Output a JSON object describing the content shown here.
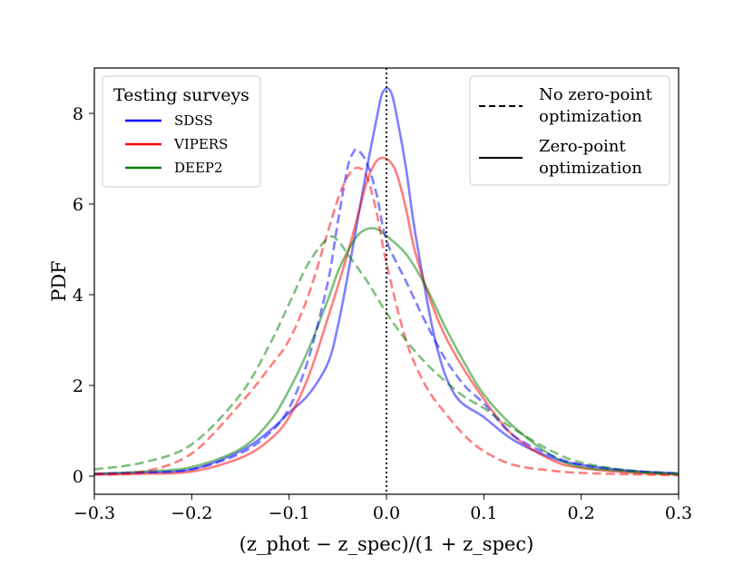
{
  "chart_data": {
    "type": "line",
    "xlabel": "(z_phot − z_spec)/(1 + z_spec)",
    "ylabel": "PDF",
    "xlim": [
      -0.3,
      0.3
    ],
    "ylim": [
      -0.4,
      9.0
    ],
    "xticks": [
      -0.3,
      -0.2,
      -0.1,
      0.0,
      0.1,
      0.2,
      0.3
    ],
    "xtick_labels": [
      "−0.3",
      "−0.2",
      "−0.1",
      "0.0",
      "0.1",
      "0.2",
      "0.3"
    ],
    "yticks": [
      0,
      2,
      4,
      6,
      8
    ],
    "ytick_labels": [
      "0",
      "2",
      "4",
      "6",
      "8"
    ],
    "grid": false,
    "vline": {
      "x": 0.0,
      "style": "dotted",
      "color": "#000000"
    },
    "legend_surveys": {
      "title": "Testing surveys",
      "placement": "top-left",
      "entries": [
        {
          "label": "SDSS",
          "color": "#0000ff"
        },
        {
          "label": "VIPERS",
          "color": "#ff0000"
        },
        {
          "label": "DEEP2",
          "color": "#008000"
        }
      ]
    },
    "legend_styles": {
      "placement": "top-right",
      "entries": [
        {
          "label_lines": [
            "No zero-point",
            "optimization"
          ],
          "style": "dashed"
        },
        {
          "label_lines": [
            "Zero-point",
            "optimization"
          ],
          "style": "solid"
        }
      ]
    },
    "series": [
      {
        "survey": "SDSS",
        "style": "solid",
        "color": "#0000ff",
        "x": [
          -0.3,
          -0.25,
          -0.2,
          -0.15,
          -0.12,
          -0.1,
          -0.08,
          -0.06,
          -0.05,
          -0.04,
          -0.03,
          -0.02,
          -0.01,
          -0.005,
          0.0,
          0.005,
          0.01,
          0.02,
          0.03,
          0.05,
          0.07,
          0.1,
          0.13,
          0.17,
          0.2,
          0.25,
          0.3
        ],
        "y": [
          0.05,
          0.08,
          0.15,
          0.55,
          1.0,
          1.4,
          1.8,
          2.5,
          3.3,
          4.4,
          5.6,
          6.8,
          7.9,
          8.4,
          8.55,
          8.45,
          8.0,
          6.8,
          5.3,
          3.0,
          1.8,
          1.3,
          0.8,
          0.4,
          0.25,
          0.12,
          0.06
        ]
      },
      {
        "survey": "VIPERS",
        "style": "solid",
        "color": "#ff0000",
        "x": [
          -0.3,
          -0.25,
          -0.2,
          -0.15,
          -0.12,
          -0.1,
          -0.08,
          -0.06,
          -0.04,
          -0.03,
          -0.02,
          -0.01,
          0.0,
          0.01,
          0.02,
          0.03,
          0.05,
          0.07,
          0.1,
          0.13,
          0.17,
          0.2,
          0.25,
          0.3
        ],
        "y": [
          0.03,
          0.05,
          0.1,
          0.4,
          0.8,
          1.3,
          2.2,
          3.5,
          4.9,
          5.7,
          6.5,
          6.95,
          7.0,
          6.7,
          5.9,
          4.9,
          3.6,
          2.7,
          1.7,
          0.9,
          0.35,
          0.18,
          0.08,
          0.03
        ]
      },
      {
        "survey": "DEEP2",
        "style": "solid",
        "color": "#008000",
        "x": [
          -0.3,
          -0.25,
          -0.2,
          -0.15,
          -0.12,
          -0.1,
          -0.08,
          -0.06,
          -0.05,
          -0.04,
          -0.03,
          -0.02,
          -0.01,
          0.0,
          0.02,
          0.04,
          0.06,
          0.08,
          0.1,
          0.13,
          0.17,
          0.2,
          0.25,
          0.3
        ],
        "y": [
          0.05,
          0.1,
          0.2,
          0.6,
          1.2,
          1.9,
          2.8,
          3.9,
          4.5,
          4.95,
          5.3,
          5.45,
          5.45,
          5.3,
          4.9,
          4.2,
          3.3,
          2.5,
          1.8,
          1.1,
          0.45,
          0.2,
          0.1,
          0.04
        ]
      },
      {
        "survey": "SDSS",
        "style": "dashed",
        "color": "#0000ff",
        "x": [
          -0.3,
          -0.25,
          -0.2,
          -0.15,
          -0.12,
          -0.1,
          -0.08,
          -0.06,
          -0.05,
          -0.04,
          -0.035,
          -0.03,
          -0.02,
          -0.01,
          0.0,
          0.02,
          0.04,
          0.06,
          0.08,
          0.1,
          0.13,
          0.17,
          0.2,
          0.25,
          0.3
        ],
        "y": [
          0.05,
          0.08,
          0.15,
          0.5,
          0.95,
          1.5,
          2.6,
          4.3,
          5.6,
          6.8,
          7.1,
          7.2,
          6.9,
          6.2,
          5.2,
          4.3,
          3.4,
          2.6,
          2.0,
          1.6,
          0.9,
          0.45,
          0.25,
          0.12,
          0.06
        ]
      },
      {
        "survey": "VIPERS",
        "style": "dashed",
        "color": "#ff0000",
        "x": [
          -0.3,
          -0.25,
          -0.2,
          -0.15,
          -0.12,
          -0.1,
          -0.08,
          -0.06,
          -0.05,
          -0.04,
          -0.03,
          -0.02,
          -0.01,
          0.0,
          0.02,
          0.04,
          0.06,
          0.08,
          0.1,
          0.13,
          0.17,
          0.2,
          0.25,
          0.3
        ],
        "y": [
          0.05,
          0.1,
          0.5,
          1.6,
          2.4,
          3.0,
          4.0,
          5.4,
          6.1,
          6.6,
          6.8,
          6.6,
          5.8,
          4.7,
          3.0,
          2.0,
          1.4,
          0.9,
          0.55,
          0.25,
          0.12,
          0.07,
          0.04,
          0.02
        ]
      },
      {
        "survey": "DEEP2",
        "style": "dashed",
        "color": "#008000",
        "x": [
          -0.3,
          -0.25,
          -0.2,
          -0.15,
          -0.12,
          -0.1,
          -0.08,
          -0.06,
          -0.05,
          -0.04,
          -0.02,
          0.0,
          0.02,
          0.04,
          0.06,
          0.08,
          0.1,
          0.13,
          0.17,
          0.2,
          0.25,
          0.3
        ],
        "y": [
          0.15,
          0.3,
          0.7,
          1.8,
          2.9,
          3.8,
          4.7,
          5.25,
          5.2,
          4.9,
          4.3,
          3.6,
          3.0,
          2.5,
          2.1,
          1.75,
          1.5,
          1.05,
          0.55,
          0.3,
          0.12,
          0.05
        ]
      }
    ]
  }
}
